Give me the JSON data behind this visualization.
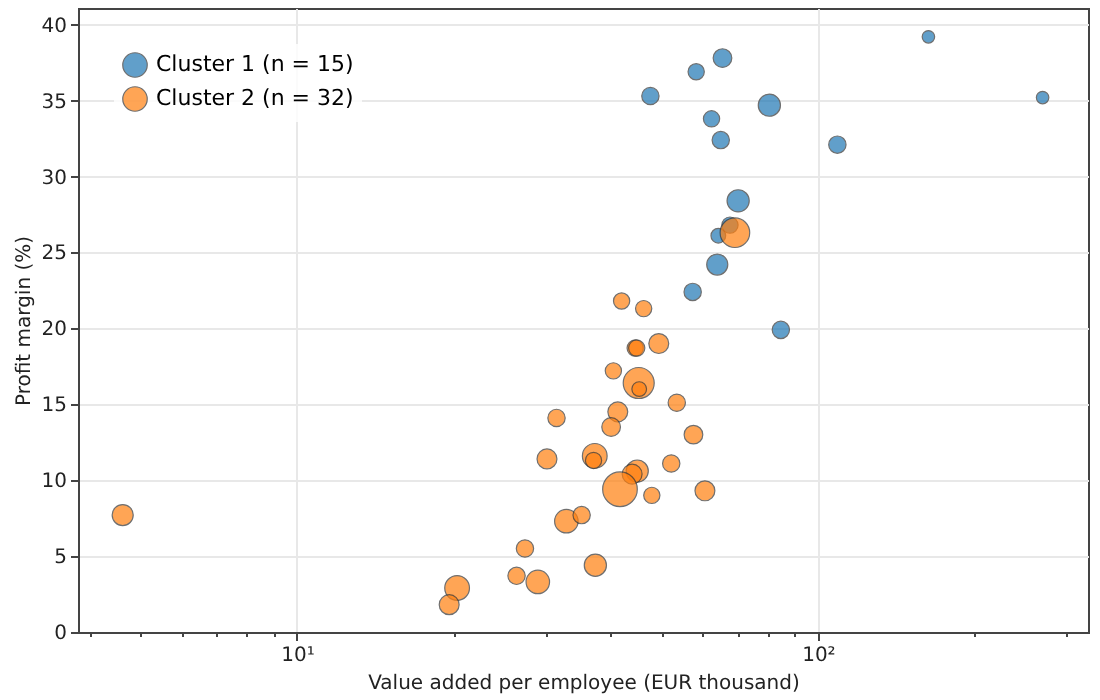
{
  "chart_data": {
    "type": "bubble",
    "xlabel": "Value added per employee (EUR thousand)",
    "ylabel": "Profit margin (%)",
    "log": "x",
    "grid": true,
    "legend": "top left",
    "marker": "circle",
    "xlim": [
      3.8,
      330
    ],
    "ylim": [
      0,
      41.1
    ],
    "xticks": [
      {
        "value": 4,
        "label": null
      },
      {
        "value": 5,
        "label": null
      },
      {
        "value": 6,
        "label": null
      },
      {
        "value": 7,
        "label": null
      },
      {
        "value": 8,
        "label": null
      },
      {
        "value": 9,
        "label": null
      },
      {
        "value": 10,
        "label": "10¹"
      },
      {
        "value": 20,
        "label": null
      },
      {
        "value": 30,
        "label": null
      },
      {
        "value": 40,
        "label": null
      },
      {
        "value": 50,
        "label": null
      },
      {
        "value": 60,
        "label": null
      },
      {
        "value": 70,
        "label": null
      },
      {
        "value": 80,
        "label": null
      },
      {
        "value": 90,
        "label": null
      },
      {
        "value": 100,
        "label": "10²"
      },
      {
        "value": 200,
        "label": null
      },
      {
        "value": 300,
        "label": null
      }
    ],
    "yticks": [
      0,
      5,
      10,
      15,
      20,
      25,
      30,
      35,
      40
    ],
    "series": [
      {
        "name": "Cluster 1 (n = 15)",
        "color": "#1f77b4",
        "x": [
          163,
          270,
          65.6,
          58.4,
          47.7,
          80.7,
          62.5,
          65.1,
          109,
          70.3,
          64.4,
          64.1,
          57.5,
          84.9,
          67.8
        ],
        "values": [
          39.2,
          35.2,
          37.8,
          36.9,
          35.3,
          34.7,
          33.8,
          32.4,
          32.1,
          28.4,
          26.1,
          24.2,
          22.4,
          19.9,
          26.8
        ],
        "sizes": [
          0.13,
          0.13,
          0.29,
          0.22,
          0.25,
          0.41,
          0.22,
          0.25,
          0.25,
          0.41,
          0.18,
          0.37,
          0.25,
          0.25,
          0.22
        ]
      },
      {
        "name": "Cluster 2 (n = 32)",
        "color": "#ff7f0e",
        "x": [
          69.3,
          42.0,
          46.3,
          44.6,
          49.5,
          40.5,
          45.3,
          45.4,
          53.6,
          41.3,
          31.5,
          40.1,
          57.7,
          37.3,
          37.1,
          30.2,
          52.3,
          45.0,
          44.0,
          41.7,
          48.0,
          60.7,
          32.9,
          35.2,
          4.63,
          27.4,
          37.4,
          26.4,
          29.0,
          20.3,
          19.6,
          44.9
        ],
        "values": [
          26.3,
          21.8,
          21.3,
          18.7,
          19.0,
          17.2,
          16.4,
          16.0,
          15.1,
          14.5,
          14.1,
          13.5,
          13.0,
          11.6,
          11.3,
          11.4,
          11.1,
          10.6,
          10.4,
          9.4,
          9.0,
          9.3,
          7.3,
          7.7,
          7.7,
          5.5,
          4.4,
          3.7,
          3.3,
          2.9,
          1.8,
          18.7
        ],
        "sizes": [
          0.73,
          0.22,
          0.22,
          0.22,
          0.33,
          0.22,
          0.8,
          0.18,
          0.25,
          0.33,
          0.25,
          0.29,
          0.29,
          0.51,
          0.22,
          0.33,
          0.25,
          0.41,
          0.33,
          1,
          0.22,
          0.33,
          0.46,
          0.25,
          0.37,
          0.25,
          0.41,
          0.25,
          0.46,
          0.51,
          0.33,
          0.22
        ]
      }
    ]
  }
}
